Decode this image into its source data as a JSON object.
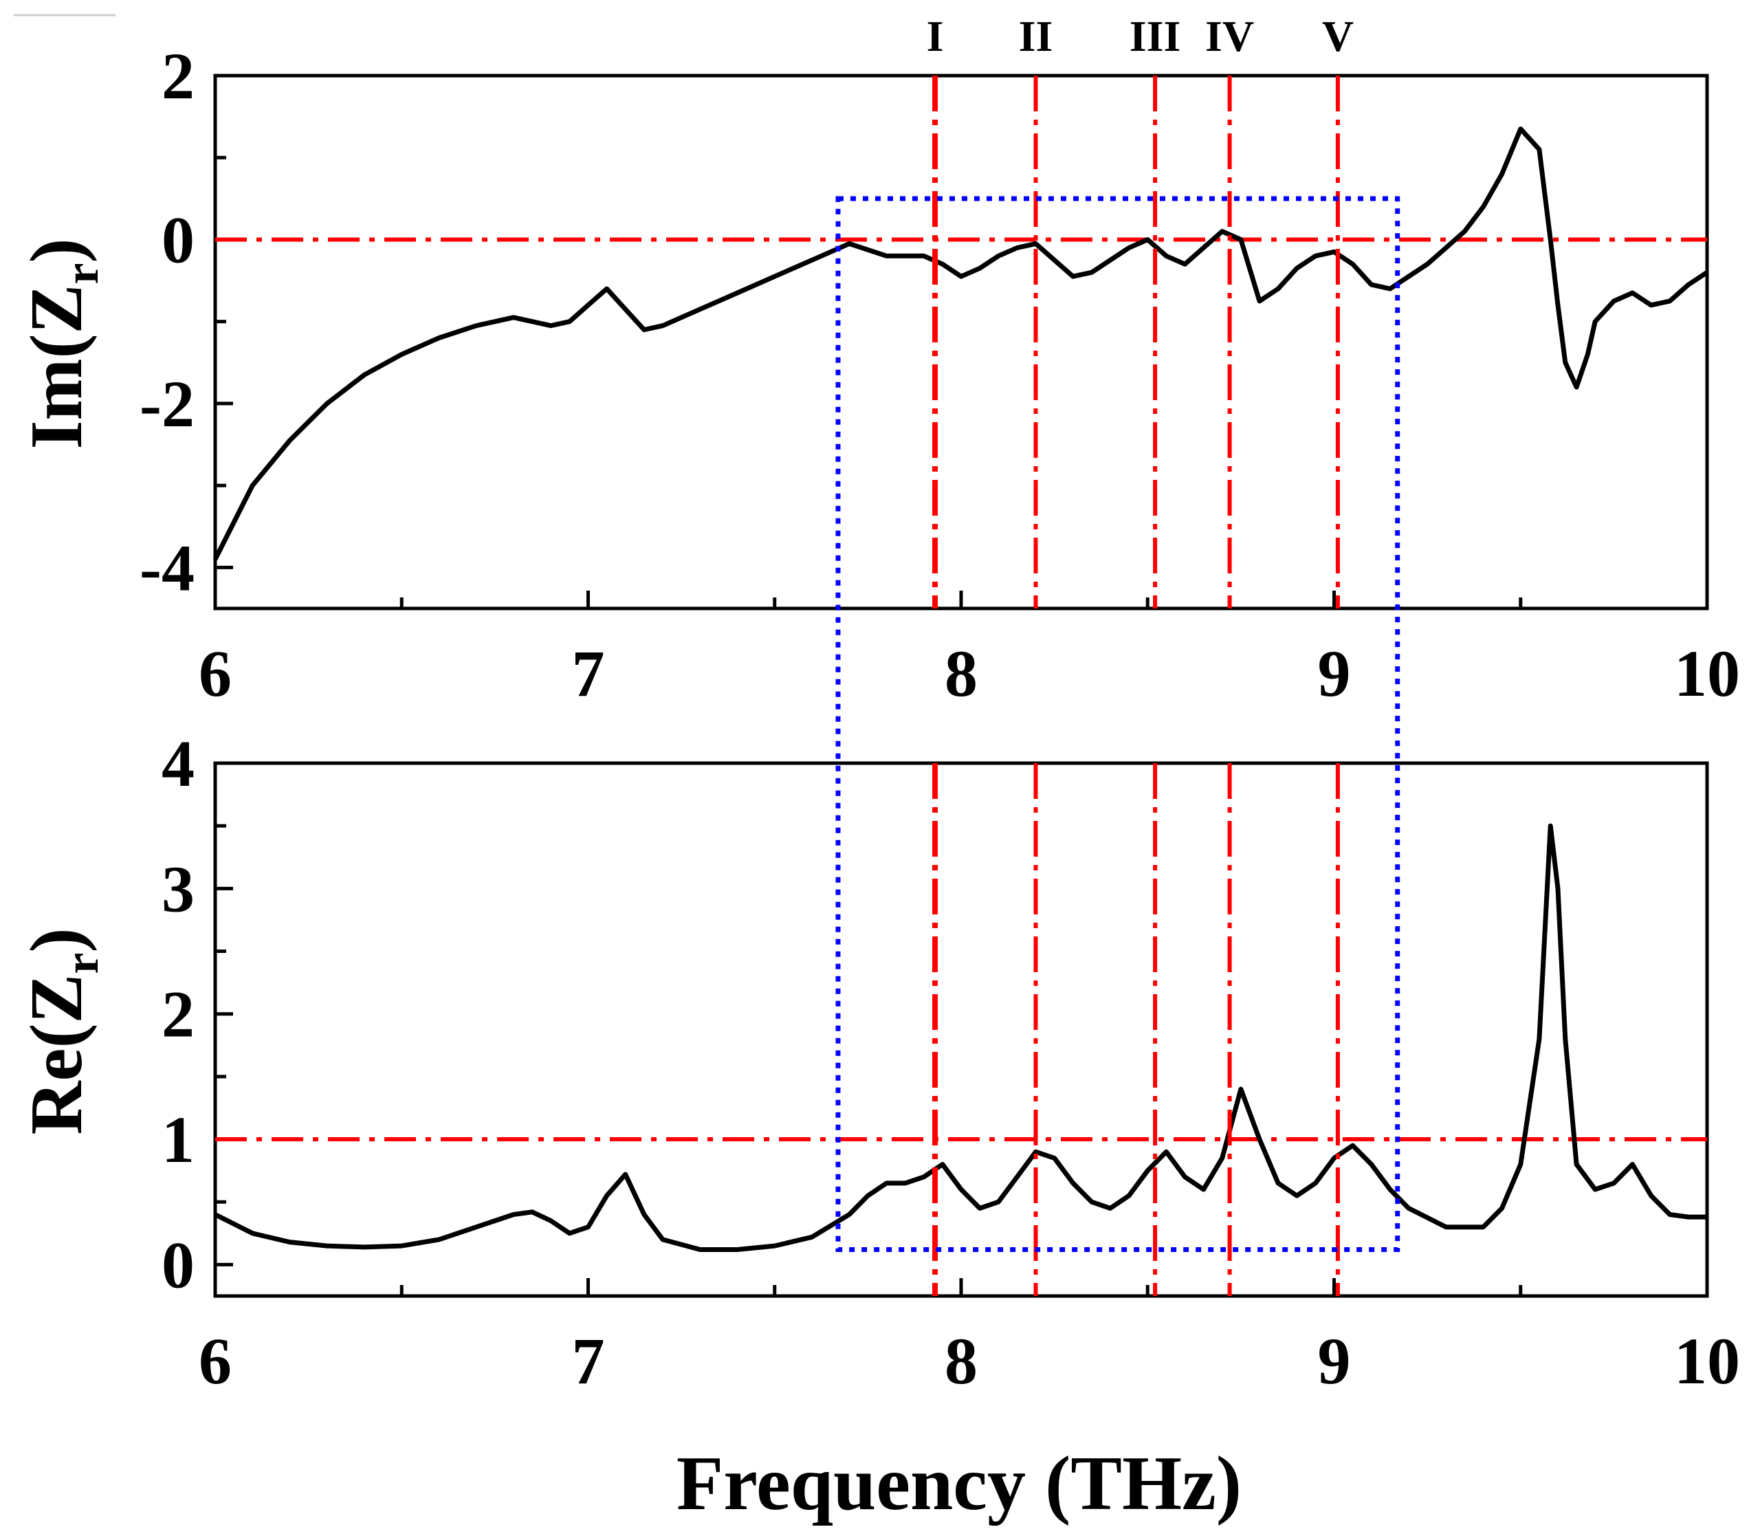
{
  "chart_data": [
    {
      "type": "line",
      "panel": "top",
      "ylabel_main": "Im(Z",
      "ylabel_sub": "r",
      "ylabel_close": ")",
      "xlim": [
        6,
        10
      ],
      "ylim": [
        -4.5,
        2
      ],
      "xticks": [
        "6",
        "7",
        "8",
        "9",
        "10"
      ],
      "yticks": [
        "2",
        "0",
        "-2",
        "-4"
      ],
      "ytick_values": [
        2,
        0,
        -2,
        -4
      ],
      "reference_line_y": 0,
      "series": [
        {
          "name": "Im(Zr)",
          "color": "#000000",
          "x": [
            6.0,
            6.1,
            6.2,
            6.3,
            6.4,
            6.5,
            6.6,
            6.7,
            6.8,
            6.9,
            6.95,
            7.0,
            7.05,
            7.1,
            7.15,
            7.2,
            7.3,
            7.4,
            7.5,
            7.6,
            7.7,
            7.8,
            7.9,
            7.95,
            8.0,
            8.05,
            8.1,
            8.15,
            8.2,
            8.25,
            8.3,
            8.35,
            8.4,
            8.45,
            8.5,
            8.55,
            8.6,
            8.65,
            8.7,
            8.75,
            8.8,
            8.85,
            8.9,
            8.95,
            9.0,
            9.05,
            9.1,
            9.15,
            9.2,
            9.25,
            9.3,
            9.35,
            9.4,
            9.45,
            9.5,
            9.55,
            9.58,
            9.6,
            9.62,
            9.65,
            9.68,
            9.7,
            9.75,
            9.8,
            9.85,
            9.9,
            9.95,
            10.0
          ],
          "y": [
            -3.9,
            -3.0,
            -2.45,
            -2.0,
            -1.65,
            -1.4,
            -1.2,
            -1.05,
            -0.95,
            -1.05,
            -1.0,
            -0.8,
            -0.6,
            -0.85,
            -1.1,
            -1.05,
            -0.85,
            -0.65,
            -0.45,
            -0.25,
            -0.05,
            -0.2,
            -0.2,
            -0.3,
            -0.45,
            -0.35,
            -0.2,
            -0.1,
            -0.05,
            -0.25,
            -0.45,
            -0.4,
            -0.25,
            -0.1,
            0.0,
            -0.2,
            -0.3,
            -0.1,
            0.1,
            0.0,
            -0.75,
            -0.6,
            -0.35,
            -0.2,
            -0.15,
            -0.3,
            -0.55,
            -0.6,
            -0.45,
            -0.3,
            -0.1,
            0.1,
            0.4,
            0.8,
            1.35,
            1.1,
            0.0,
            -0.8,
            -1.5,
            -1.8,
            -1.4,
            -1.0,
            -0.75,
            -0.65,
            -0.8,
            -0.75,
            -0.55,
            -0.4
          ]
        }
      ]
    },
    {
      "type": "line",
      "panel": "bottom",
      "ylabel_main": "Re(Z",
      "ylabel_sub": "r",
      "ylabel_close": ")",
      "xlabel": "Frequency (THz)",
      "xlim": [
        6,
        10
      ],
      "ylim": [
        -0.25,
        4
      ],
      "xticks": [
        "6",
        "7",
        "8",
        "9",
        "10"
      ],
      "yticks": [
        "4",
        "3",
        "2",
        "1",
        "0"
      ],
      "ytick_values": [
        4,
        3,
        2,
        1,
        0
      ],
      "reference_line_y": 1,
      "series": [
        {
          "name": "Re(Zr)",
          "color": "#000000",
          "x": [
            6.0,
            6.1,
            6.2,
            6.3,
            6.4,
            6.5,
            6.6,
            6.7,
            6.8,
            6.85,
            6.9,
            6.95,
            7.0,
            7.05,
            7.1,
            7.15,
            7.2,
            7.3,
            7.4,
            7.5,
            7.6,
            7.7,
            7.75,
            7.8,
            7.85,
            7.9,
            7.95,
            8.0,
            8.05,
            8.1,
            8.15,
            8.2,
            8.25,
            8.3,
            8.35,
            8.4,
            8.45,
            8.5,
            8.55,
            8.6,
            8.65,
            8.7,
            8.75,
            8.8,
            8.85,
            8.9,
            8.95,
            9.0,
            9.05,
            9.1,
            9.15,
            9.2,
            9.3,
            9.4,
            9.45,
            9.5,
            9.55,
            9.58,
            9.6,
            9.62,
            9.65,
            9.7,
            9.75,
            9.8,
            9.85,
            9.9,
            9.95,
            10.0
          ],
          "y": [
            0.4,
            0.25,
            0.18,
            0.15,
            0.14,
            0.15,
            0.2,
            0.3,
            0.4,
            0.42,
            0.35,
            0.25,
            0.3,
            0.55,
            0.72,
            0.4,
            0.2,
            0.12,
            0.12,
            0.15,
            0.22,
            0.4,
            0.55,
            0.65,
            0.65,
            0.7,
            0.8,
            0.6,
            0.45,
            0.5,
            0.7,
            0.9,
            0.85,
            0.65,
            0.5,
            0.45,
            0.55,
            0.75,
            0.9,
            0.7,
            0.6,
            0.85,
            1.4,
            1.0,
            0.65,
            0.55,
            0.65,
            0.85,
            0.95,
            0.8,
            0.6,
            0.45,
            0.3,
            0.3,
            0.45,
            0.8,
            1.8,
            3.5,
            3.0,
            1.8,
            0.8,
            0.6,
            0.65,
            0.8,
            0.55,
            0.4,
            0.38,
            0.38
          ]
        }
      ]
    }
  ],
  "vertical_markers": [
    {
      "label": "I",
      "x": 7.93
    },
    {
      "label": "II",
      "x": 8.2
    },
    {
      "label": "III",
      "x": 8.52
    },
    {
      "label": "IV",
      "x": 8.72
    },
    {
      "label": "V",
      "x": 9.01
    }
  ],
  "highlight_region": {
    "x_start": 7.67,
    "x_end": 9.17,
    "color": "#0000ff"
  },
  "colors": {
    "curve": "#000000",
    "marker_lines": "#ff0000",
    "box": "#0000ff"
  }
}
